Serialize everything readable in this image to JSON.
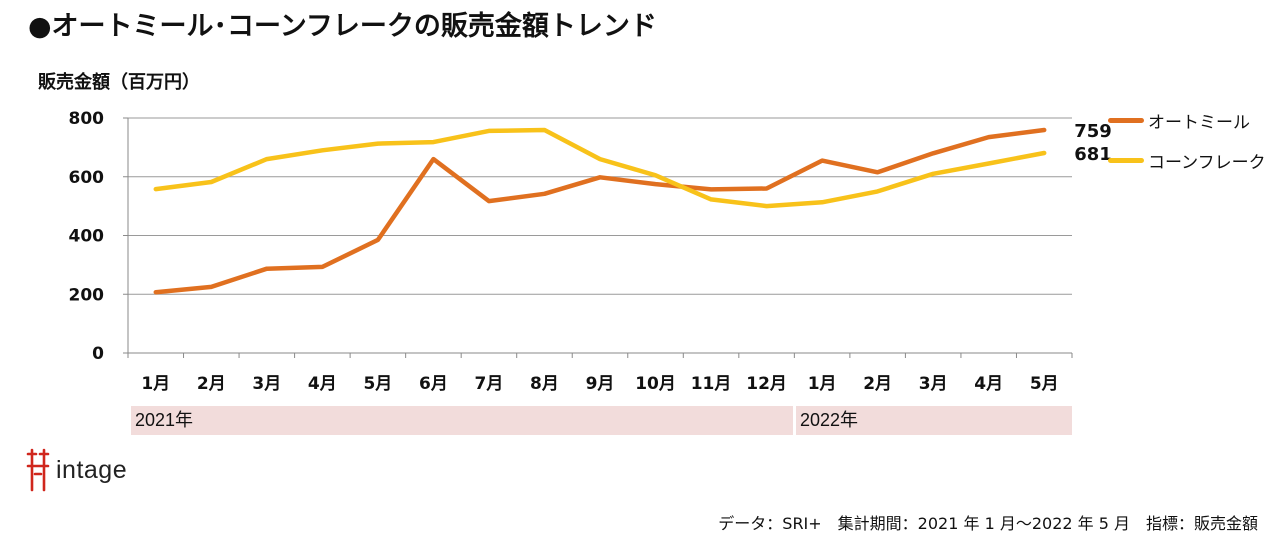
{
  "page": {
    "title": "●オートミール･コーンフレークの販売金額トレンド",
    "footnote": "データ：SRI+　集計期間：2021 年 1 月～2022 年 5 月　指標：販売金額",
    "logo_text": "intage"
  },
  "chart_data": {
    "type": "line",
    "ylabel": "販売金額（百万円）",
    "ylim": [
      0,
      800
    ],
    "yticks": [
      0,
      200,
      400,
      600,
      800
    ],
    "categories": [
      "1月",
      "2月",
      "3月",
      "4月",
      "5月",
      "6月",
      "7月",
      "8月",
      "9月",
      "10月",
      "11月",
      "12月",
      "1月",
      "2月",
      "3月",
      "4月",
      "5月"
    ],
    "year_groups": [
      {
        "label": "2021年",
        "start": 0,
        "end": 11
      },
      {
        "label": "2022年",
        "start": 12,
        "end": 16
      }
    ],
    "series": [
      {
        "name": "オートミール",
        "color": "#e07020",
        "values": [
          207,
          225,
          287,
          293,
          385,
          660,
          517,
          542,
          598,
          575,
          557,
          560,
          655,
          615,
          680,
          735,
          759
        ],
        "end_label": "759"
      },
      {
        "name": "コーンフレーク",
        "color": "#f8c21a",
        "values": [
          558,
          582,
          660,
          690,
          713,
          718,
          756,
          759,
          660,
          605,
          523,
          500,
          513,
          550,
          610,
          645,
          681
        ],
        "end_label": "681"
      }
    ],
    "legend_position": "top-right",
    "grid": true
  }
}
